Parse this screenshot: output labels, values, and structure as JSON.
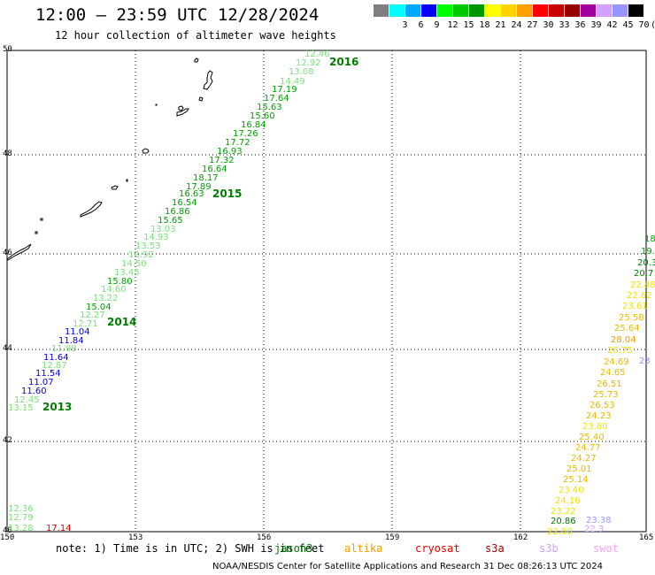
{
  "title": "12:00 – 23:59 UTC 12/28/2024",
  "subtitle": "12 hour collection of altimeter wave heights",
  "legend": {
    "unit": "(ft)",
    "colors": [
      "#7f7f7f",
      "#00ffff",
      "#00a8ff",
      "#0000ff",
      "#00ff00",
      "#00c800",
      "#009600",
      "#ffff00",
      "#ffd200",
      "#ffa000",
      "#ff0000",
      "#c80000",
      "#960000",
      "#a000a0",
      "#d2a0ff",
      "#9696ff",
      "#000000"
    ],
    "labels": [
      "",
      "3",
      "6",
      "9",
      "12",
      "15",
      "18",
      "21",
      "24",
      "27",
      "30",
      "33",
      "36",
      "39",
      "42",
      "45",
      "70"
    ]
  },
  "axes": {
    "lat_ticks": [
      "50",
      "48",
      "46",
      "44",
      "42",
      "40"
    ],
    "lon_ticks": [
      "150",
      "153",
      "156",
      "159",
      "162",
      "165"
    ]
  },
  "cycles": [
    {
      "text": "2016",
      "color": "#007c00"
    },
    {
      "text": "2015",
      "color": "#007c00"
    },
    {
      "text": "2014",
      "color": "#007c00"
    },
    {
      "text": "2013",
      "color": "#007c00"
    }
  ],
  "track_labels": [
    {
      "text": "12.46",
      "color": "#7ce07c"
    },
    {
      "text": "12.92",
      "color": "#7ce07c"
    },
    {
      "text": "13.08",
      "color": "#7ce07c"
    },
    {
      "text": "14.49",
      "color": "#7ce07c"
    },
    {
      "text": "17.19",
      "color": "#00a000"
    },
    {
      "text": "17.64",
      "color": "#00a000"
    },
    {
      "text": "15.63",
      "color": "#00a000"
    },
    {
      "text": "15.60",
      "color": "#00a000"
    },
    {
      "text": "16.84",
      "color": "#00a000"
    },
    {
      "text": "17.26",
      "color": "#00a000"
    },
    {
      "text": "17.72",
      "color": "#00a000"
    },
    {
      "text": "16.93",
      "color": "#00a000"
    },
    {
      "text": "17.32",
      "color": "#00a000"
    },
    {
      "text": "16.64",
      "color": "#00a000"
    },
    {
      "text": "18.17",
      "color": "#00a000"
    },
    {
      "text": "17.89",
      "color": "#00a000"
    },
    {
      "text": "16.63",
      "color": "#00a000"
    },
    {
      "text": "16.54",
      "color": "#00a000"
    },
    {
      "text": "16.86",
      "color": "#00a000"
    },
    {
      "text": "15.65",
      "color": "#00a000"
    },
    {
      "text": "13.03",
      "color": "#7ce07c"
    },
    {
      "text": "14.93",
      "color": "#7ce07c"
    },
    {
      "text": "13.53",
      "color": "#7ce07c"
    },
    {
      "text": "13.92",
      "color": "#7ce07c"
    },
    {
      "text": "14.50",
      "color": "#7ce07c"
    },
    {
      "text": "13.45",
      "color": "#7ce07c"
    },
    {
      "text": "15.80",
      "color": "#00a000"
    },
    {
      "text": "14.60",
      "color": "#7ce07c"
    },
    {
      "text": "13.22",
      "color": "#7ce07c"
    },
    {
      "text": "15.04",
      "color": "#00a000"
    },
    {
      "text": "12.27",
      "color": "#7ce07c"
    },
    {
      "text": "12.71",
      "color": "#7ce07c"
    },
    {
      "text": "11.04",
      "color": "#0000e0"
    },
    {
      "text": "11.84",
      "color": "#0000e0"
    },
    {
      "text": "11.98",
      "color": "#7ce07c"
    },
    {
      "text": "11.64",
      "color": "#0000e0"
    },
    {
      "text": "12.87",
      "color": "#7ce07c"
    },
    {
      "text": "11.54",
      "color": "#0000e0"
    },
    {
      "text": "11.07",
      "color": "#0000e0"
    },
    {
      "text": "11.60",
      "color": "#0000e0"
    },
    {
      "text": "12.45",
      "color": "#7ce07c"
    },
    {
      "text": "13.15",
      "color": "#7ce07c"
    },
    {
      "text": "12.36",
      "color": "#7ce07c"
    },
    {
      "text": "12.79",
      "color": "#7ce07c"
    },
    {
      "text": "13.28",
      "color": "#7ce07c"
    },
    {
      "text": "17.14",
      "color": "#e00000"
    },
    {
      "text": "18",
      "color": "#00a000"
    },
    {
      "text": "19.",
      "color": "#00a000"
    },
    {
      "text": "20.3",
      "color": "#007c00"
    },
    {
      "text": "20.7",
      "color": "#007c00"
    },
    {
      "text": "22.88",
      "color": "#f0e000"
    },
    {
      "text": "22.62",
      "color": "#f0e000"
    },
    {
      "text": "23.61",
      "color": "#f0e000"
    },
    {
      "text": "25.58",
      "color": "#e8b800"
    },
    {
      "text": "25.64",
      "color": "#e8b800"
    },
    {
      "text": "28.04",
      "color": "#f0a000"
    },
    {
      "text": "26.75",
      "color": "#f0e000"
    },
    {
      "text": "24.69",
      "color": "#e8b800"
    },
    {
      "text": "24.65",
      "color": "#e8b800"
    },
    {
      "text": "26.51",
      "color": "#e8b800"
    },
    {
      "text": "25.73",
      "color": "#e8b800"
    },
    {
      "text": "26.53",
      "color": "#e8b800"
    },
    {
      "text": "24.23",
      "color": "#e8b800"
    },
    {
      "text": "23.80",
      "color": "#f0e000"
    },
    {
      "text": "25.40",
      "color": "#e8b800"
    },
    {
      "text": "24.77",
      "color": "#e8b800"
    },
    {
      "text": "24.27",
      "color": "#e8b800"
    },
    {
      "text": "25.01",
      "color": "#e8b800"
    },
    {
      "text": "25.14",
      "color": "#e8b800"
    },
    {
      "text": "23.40",
      "color": "#f0e000"
    },
    {
      "text": "24.16",
      "color": "#f0e000"
    },
    {
      "text": "23.22",
      "color": "#f0e000"
    },
    {
      "text": "20.86",
      "color": "#007c00"
    },
    {
      "text": "22.00",
      "color": "#f0e000"
    },
    {
      "text": "23",
      "color": "#9696ff"
    },
    {
      "text": "23.38",
      "color": "#9696ff"
    },
    {
      "text": "22.3",
      "color": "#d2a0ff"
    }
  ],
  "note": {
    "text": "note: 1) Time is in UTC; 2) SWH is in feet",
    "missions": [
      {
        "text": "jason3",
        "color": "#007c00"
      },
      {
        "text": "altika",
        "color": "#f0a000"
      },
      {
        "text": "cryosat",
        "color": "#e00000"
      },
      {
        "text": "s3a",
        "color": "#960000"
      },
      {
        "text": "s3b",
        "color": "#d2a0ff"
      },
      {
        "text": "swot",
        "color": "#ffa0ff"
      }
    ]
  },
  "footer": "NOAA/NESDIS Center for Satellite Applications and Research    31 Dec 08:26:13 UTC 2024"
}
